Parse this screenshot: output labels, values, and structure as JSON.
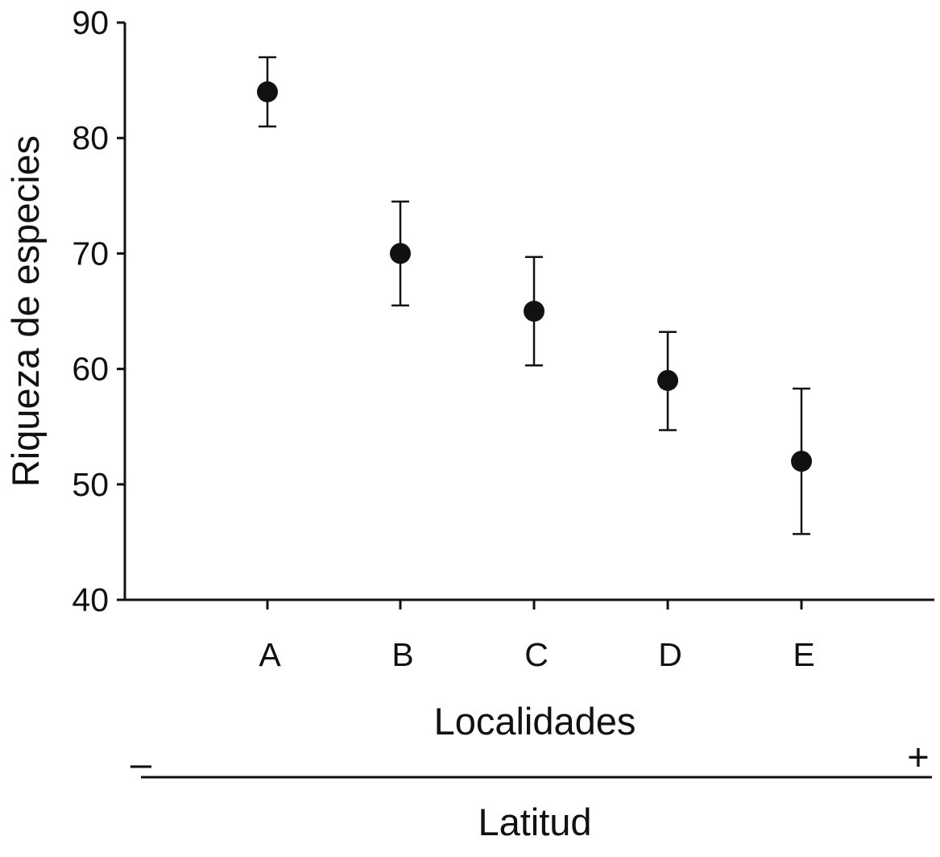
{
  "chart_data": {
    "type": "scatter",
    "categories": [
      "A",
      "B",
      "C",
      "D",
      "E"
    ],
    "values": [
      84,
      70,
      65,
      59,
      52
    ],
    "error_upper": [
      87,
      74.5,
      69.7,
      63.2,
      58.3
    ],
    "error_lower": [
      81,
      65.5,
      60.3,
      54.7,
      45.7
    ],
    "ylabel": "Riqueza de especies",
    "xlabel": "Localidades",
    "ylim": [
      40,
      90
    ],
    "yticks": [
      40,
      50,
      60,
      70,
      80,
      90
    ],
    "gradient": {
      "label": "Latitud",
      "low": "–",
      "high": "+"
    },
    "grid": false,
    "colors": {
      "marker": "#111111",
      "axis": "#111111"
    }
  }
}
